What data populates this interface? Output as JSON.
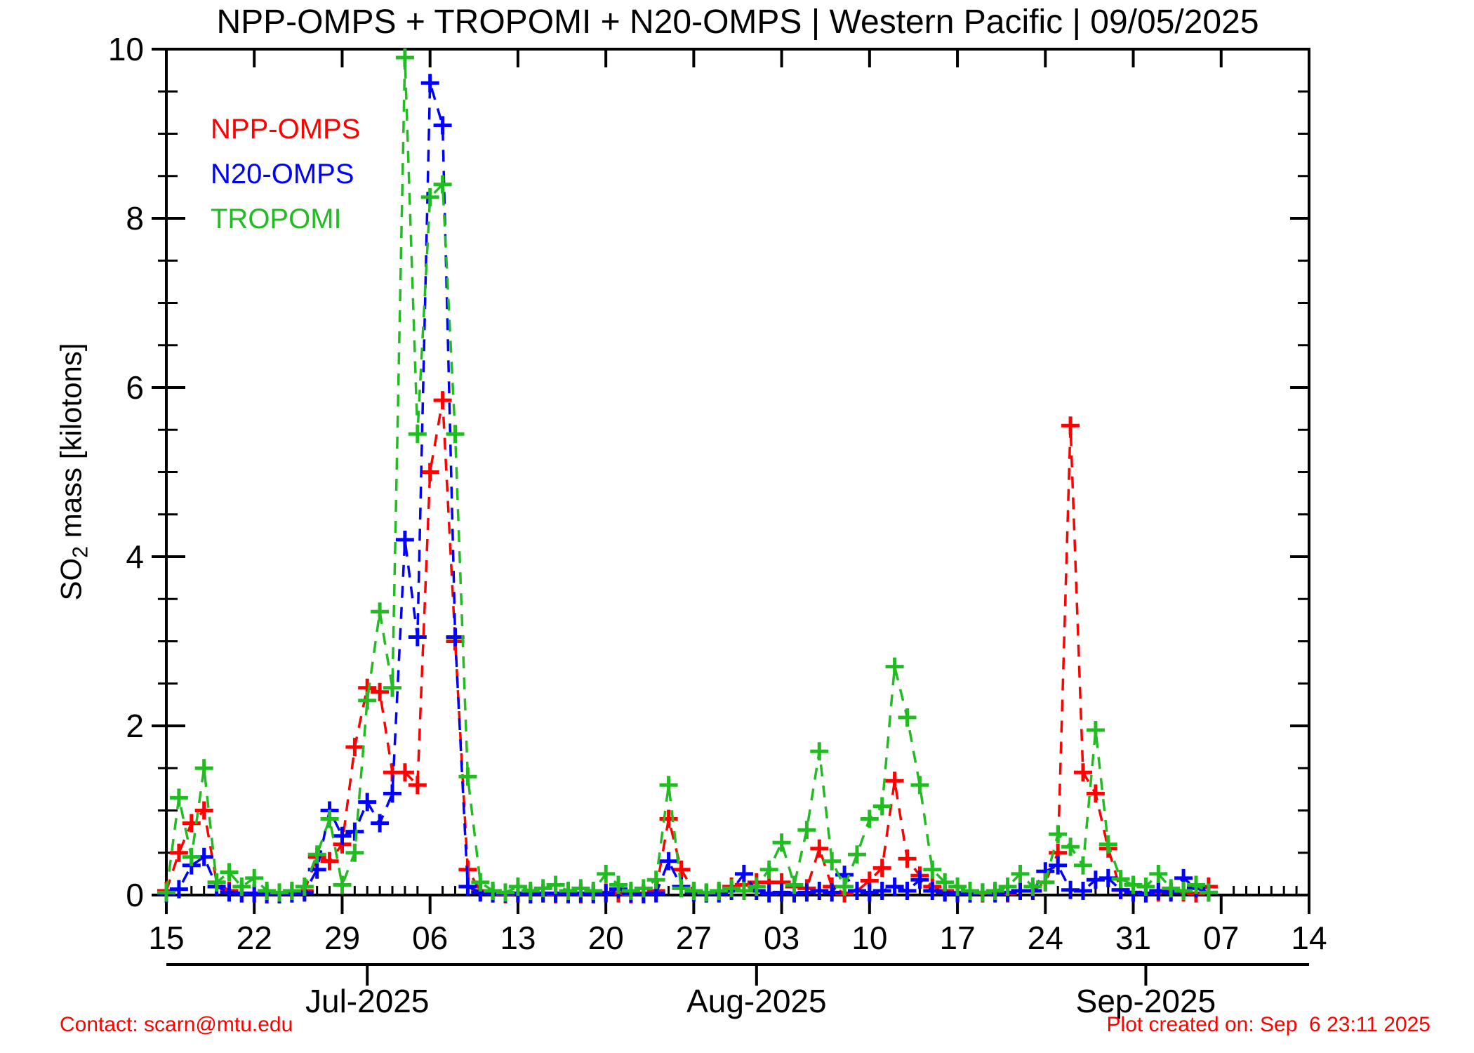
{
  "chart_data": {
    "type": "line",
    "title": "NPP-OMPS + TROPOMI + N20-OMPS | Western Pacific | 09/05/2025",
    "ylabel_parts": {
      "base": "SO",
      "sub": "2",
      "rest": " mass [kilotons]"
    },
    "ylim": [
      0,
      10
    ],
    "y_major_ticks": [
      0,
      2,
      4,
      6,
      8,
      10
    ],
    "y_minor_step": 0.5,
    "x_range_days": 91,
    "x_start_date": "06/15/2025",
    "x_end_date": "09/14/2025",
    "x_minor_step_days": 1,
    "grid": false,
    "legend_position": "top-left-inside",
    "marker": "plus",
    "line_style": "dashed",
    "x_major_ticks": [
      {
        "day": 0,
        "label": "15"
      },
      {
        "day": 7,
        "label": "22"
      },
      {
        "day": 14,
        "label": "29"
      },
      {
        "day": 21,
        "label": "06"
      },
      {
        "day": 28,
        "label": "13"
      },
      {
        "day": 35,
        "label": "20"
      },
      {
        "day": 42,
        "label": "27"
      },
      {
        "day": 49,
        "label": "03"
      },
      {
        "day": 56,
        "label": "10"
      },
      {
        "day": 63,
        "label": "17"
      },
      {
        "day": 70,
        "label": "24"
      },
      {
        "day": 77,
        "label": "31"
      },
      {
        "day": 84,
        "label": "07"
      },
      {
        "day": 91,
        "label": "14"
      }
    ],
    "month_axis": [
      {
        "day": 16,
        "label": "Jul-2025"
      },
      {
        "day": 47,
        "label": "Aug-2025"
      },
      {
        "day": 78,
        "label": "Sep-2025"
      }
    ],
    "dates": [
      "06/15",
      "06/16",
      "06/17",
      "06/18",
      "06/19",
      "06/20",
      "06/21",
      "06/22",
      "06/23",
      "06/24",
      "06/25",
      "06/26",
      "06/27",
      "06/28",
      "06/29",
      "06/30",
      "07/01",
      "07/02",
      "07/03",
      "07/04",
      "07/05",
      "07/06",
      "07/07",
      "07/08",
      "07/09",
      "07/10",
      "07/11",
      "07/12",
      "07/13",
      "07/14",
      "07/15",
      "07/16",
      "07/17",
      "07/18",
      "07/19",
      "07/20",
      "07/21",
      "07/22",
      "07/23",
      "07/24",
      "07/25",
      "07/26",
      "07/27",
      "07/28",
      "07/29",
      "07/30",
      "07/31",
      "08/01",
      "08/02",
      "08/03",
      "08/04",
      "08/05",
      "08/06",
      "08/07",
      "08/08",
      "08/09",
      "08/10",
      "08/11",
      "08/12",
      "08/13",
      "08/14",
      "08/15",
      "08/16",
      "08/17",
      "08/18",
      "08/19",
      "08/20",
      "08/21",
      "08/22",
      "08/23",
      "08/24",
      "08/25",
      "08/26",
      "08/27",
      "08/28",
      "08/29",
      "08/30",
      "08/31",
      "09/01",
      "09/02",
      "09/03",
      "09/04",
      "09/05",
      "09/06"
    ],
    "series": [
      {
        "name": "NPP-OMPS",
        "color": "#ff0000",
        "values": [
          0.05,
          0.5,
          0.85,
          1.0,
          0.15,
          0.05,
          0.02,
          0.02,
          0.01,
          0.01,
          0.02,
          0.05,
          0.45,
          0.4,
          0.6,
          1.75,
          2.45,
          2.4,
          1.45,
          1.45,
          1.3,
          5.0,
          5.85,
          3.0,
          0.3,
          0.05,
          0.02,
          0.01,
          0.02,
          0.01,
          0.02,
          0.01,
          0.02,
          0.01,
          0.02,
          0.03,
          0.02,
          0.01,
          0.02,
          0.05,
          0.9,
          0.3,
          0.05,
          0.02,
          0.03,
          0.1,
          0.12,
          0.15,
          0.15,
          0.15,
          0.1,
          0.08,
          0.55,
          0.1,
          0.02,
          0.05,
          0.17,
          0.32,
          1.35,
          0.43,
          0.23,
          0.1,
          0.05,
          0.03,
          0.02,
          0.02,
          0.03,
          0.02,
          0.05,
          0.05,
          0.15,
          0.5,
          5.55,
          1.45,
          1.2,
          0.55,
          0.06,
          0.03,
          0.02,
          0.03,
          0.05,
          0.03,
          0.02,
          0.1
        ]
      },
      {
        "name": "N20-OMPS",
        "color": "#0000ff",
        "values": [
          0.02,
          0.07,
          0.35,
          0.45,
          0.1,
          0.03,
          0.02,
          0.02,
          0.01,
          0.01,
          0.02,
          0.03,
          0.3,
          1.0,
          0.7,
          0.75,
          1.1,
          0.85,
          1.2,
          4.2,
          3.05,
          9.6,
          9.1,
          3.05,
          0.1,
          0.03,
          0.02,
          0.02,
          0.02,
          0.01,
          0.02,
          0.02,
          0.01,
          0.02,
          0.01,
          0.02,
          0.07,
          0.02,
          0.01,
          0.02,
          0.4,
          0.1,
          0.03,
          0.02,
          0.02,
          0.05,
          0.25,
          0.05,
          0.02,
          0.03,
          0.02,
          0.03,
          0.05,
          0.03,
          0.24,
          0.05,
          0.03,
          0.05,
          0.1,
          0.05,
          0.18,
          0.05,
          0.03,
          0.02,
          0.02,
          0.03,
          0.02,
          0.03,
          0.05,
          0.05,
          0.28,
          0.35,
          0.06,
          0.05,
          0.18,
          0.2,
          0.06,
          0.03,
          0.02,
          0.05,
          0.03,
          0.2,
          0.08,
          0.03
        ]
      },
      {
        "name": "TROPOMI",
        "color": "#22bb22",
        "values": [
          0.03,
          1.15,
          0.45,
          1.5,
          0.15,
          0.27,
          0.1,
          0.2,
          0.05,
          0.03,
          0.05,
          0.1,
          0.48,
          0.9,
          0.12,
          0.5,
          2.3,
          3.35,
          2.45,
          9.9,
          5.45,
          8.25,
          8.4,
          5.45,
          1.4,
          0.15,
          0.05,
          0.03,
          0.1,
          0.05,
          0.08,
          0.12,
          0.05,
          0.08,
          0.05,
          0.25,
          0.12,
          0.05,
          0.08,
          0.18,
          1.3,
          0.08,
          0.05,
          0.03,
          0.05,
          0.08,
          0.05,
          0.1,
          0.3,
          0.62,
          0.12,
          0.77,
          1.7,
          0.4,
          0.1,
          0.48,
          0.9,
          1.05,
          2.7,
          2.1,
          1.3,
          0.3,
          0.15,
          0.1,
          0.05,
          0.03,
          0.05,
          0.1,
          0.25,
          0.1,
          0.15,
          0.72,
          0.57,
          0.35,
          1.95,
          0.6,
          0.19,
          0.12,
          0.1,
          0.25,
          0.08,
          0.05,
          0.12,
          0.03
        ]
      }
    ]
  },
  "footer": {
    "contact": "Contact: scarn@mtu.edu",
    "created": "Plot created on: Sep  6 23:11 2025",
    "color": "#ff0000"
  }
}
